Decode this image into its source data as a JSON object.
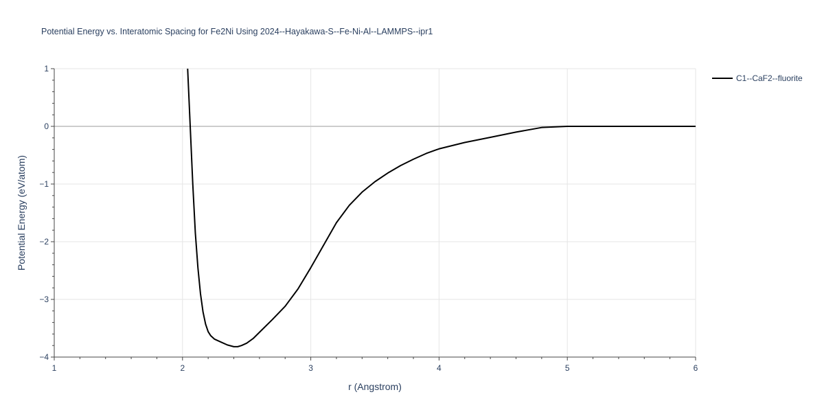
{
  "chart_data": {
    "type": "line",
    "title": "Potential Energy vs. Interatomic Spacing for Fe2Ni Using 2024--Hayakawa-S--Fe-Ni-Al--LAMMPS--ipr1",
    "xlabel": "r (Angstrom)",
    "ylabel": "Potential Energy (eV/atom)",
    "xlim": [
      1,
      6
    ],
    "ylim": [
      -4,
      1
    ],
    "x_ticks": [
      1,
      2,
      3,
      4,
      5,
      6
    ],
    "y_ticks": [
      1,
      0,
      -1,
      -2,
      -3,
      -4
    ],
    "x_tick_labels": [
      "1",
      "2",
      "3",
      "4",
      "5",
      "6"
    ],
    "y_tick_labels": [
      "1",
      "0",
      "−1",
      "−2",
      "−3",
      "−4"
    ],
    "grid": true,
    "legend_position": "top-right",
    "series": [
      {
        "name": "C1--CaF2--fluorite",
        "color": "#000000",
        "x": [
          2.04,
          2.06,
          2.08,
          2.1,
          2.12,
          2.14,
          2.16,
          2.18,
          2.2,
          2.22,
          2.25,
          2.3,
          2.35,
          2.4,
          2.43,
          2.46,
          2.5,
          2.55,
          2.6,
          2.7,
          2.8,
          2.9,
          3.0,
          3.1,
          3.2,
          3.3,
          3.4,
          3.5,
          3.6,
          3.7,
          3.8,
          3.9,
          4.0,
          4.2,
          4.4,
          4.6,
          4.8,
          5.0,
          5.5,
          6.0
        ],
        "y": [
          1.0,
          0.0,
          -1.0,
          -1.85,
          -2.45,
          -2.9,
          -3.22,
          -3.43,
          -3.56,
          -3.63,
          -3.69,
          -3.74,
          -3.79,
          -3.82,
          -3.82,
          -3.8,
          -3.76,
          -3.68,
          -3.57,
          -3.35,
          -3.12,
          -2.82,
          -2.45,
          -2.06,
          -1.67,
          -1.37,
          -1.14,
          -0.96,
          -0.81,
          -0.68,
          -0.57,
          -0.47,
          -0.39,
          -0.28,
          -0.19,
          -0.1,
          -0.02,
          0.0,
          0.0,
          0.0
        ]
      }
    ]
  }
}
